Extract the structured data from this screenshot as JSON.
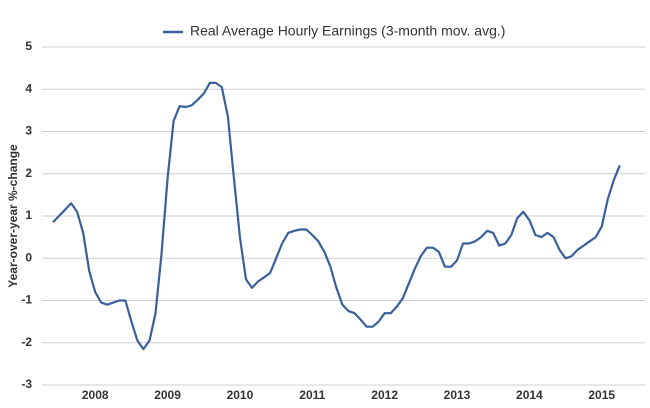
{
  "chart_data": {
    "type": "line",
    "y_label": "Year-over-year %-change",
    "categories": [
      null,
      null,
      null,
      null,
      null,
      null,
      null,
      "2008",
      null,
      null,
      null,
      null,
      null,
      null,
      null,
      null,
      null,
      null,
      null,
      "2009",
      null,
      null,
      null,
      null,
      null,
      null,
      null,
      null,
      null,
      null,
      null,
      "2010",
      null,
      null,
      null,
      null,
      null,
      null,
      null,
      null,
      null,
      null,
      null,
      "2011",
      null,
      null,
      null,
      null,
      null,
      null,
      null,
      null,
      null,
      null,
      null,
      "2012",
      null,
      null,
      null,
      null,
      null,
      null,
      null,
      null,
      null,
      null,
      null,
      "2013",
      null,
      null,
      null,
      null,
      null,
      null,
      null,
      null,
      null,
      null,
      null,
      "2014",
      null,
      null,
      null,
      null,
      null,
      null,
      null,
      null,
      null,
      null,
      null,
      "2015",
      null,
      null,
      null
    ],
    "series": [
      {
        "name": "Real Average Hourly Earnings (3-month mov. avg.)",
        "color": "#3a5f9a",
        "values": [
          0.85,
          1.0,
          1.15,
          1.3,
          1.1,
          0.6,
          -0.3,
          -0.8,
          -1.05,
          -1.1,
          -1.05,
          -1.0,
          -1.0,
          -1.5,
          -1.95,
          -2.15,
          -1.95,
          -1.3,
          0.1,
          1.9,
          3.25,
          3.6,
          3.58,
          3.62,
          3.75,
          3.9,
          4.15,
          4.15,
          4.05,
          3.35,
          1.9,
          0.5,
          -0.5,
          -0.7,
          -0.55,
          -0.45,
          -0.35,
          0.0,
          0.35,
          0.6,
          0.65,
          0.68,
          0.68,
          0.55,
          0.4,
          0.15,
          -0.2,
          -0.7,
          -1.1,
          -1.25,
          -1.3,
          -1.45,
          -1.62,
          -1.62,
          -1.5,
          -1.3,
          -1.3,
          -1.15,
          -0.95,
          -0.6,
          -0.25,
          0.05,
          0.25,
          0.25,
          0.15,
          -0.2,
          -0.2,
          -0.05,
          0.35,
          0.35,
          0.4,
          0.5,
          0.65,
          0.6,
          0.3,
          0.35,
          0.55,
          0.95,
          1.1,
          0.9,
          0.55,
          0.5,
          0.6,
          0.5,
          0.2,
          0.0,
          0.05,
          0.2,
          0.3,
          0.4,
          0.5,
          0.75,
          1.4,
          1.85,
          2.2
        ]
      }
    ],
    "ylim": [
      -3,
      5
    ],
    "yticks": [
      -3,
      -2,
      -1,
      0,
      1,
      2,
      3,
      4,
      5
    ],
    "grid": true
  }
}
